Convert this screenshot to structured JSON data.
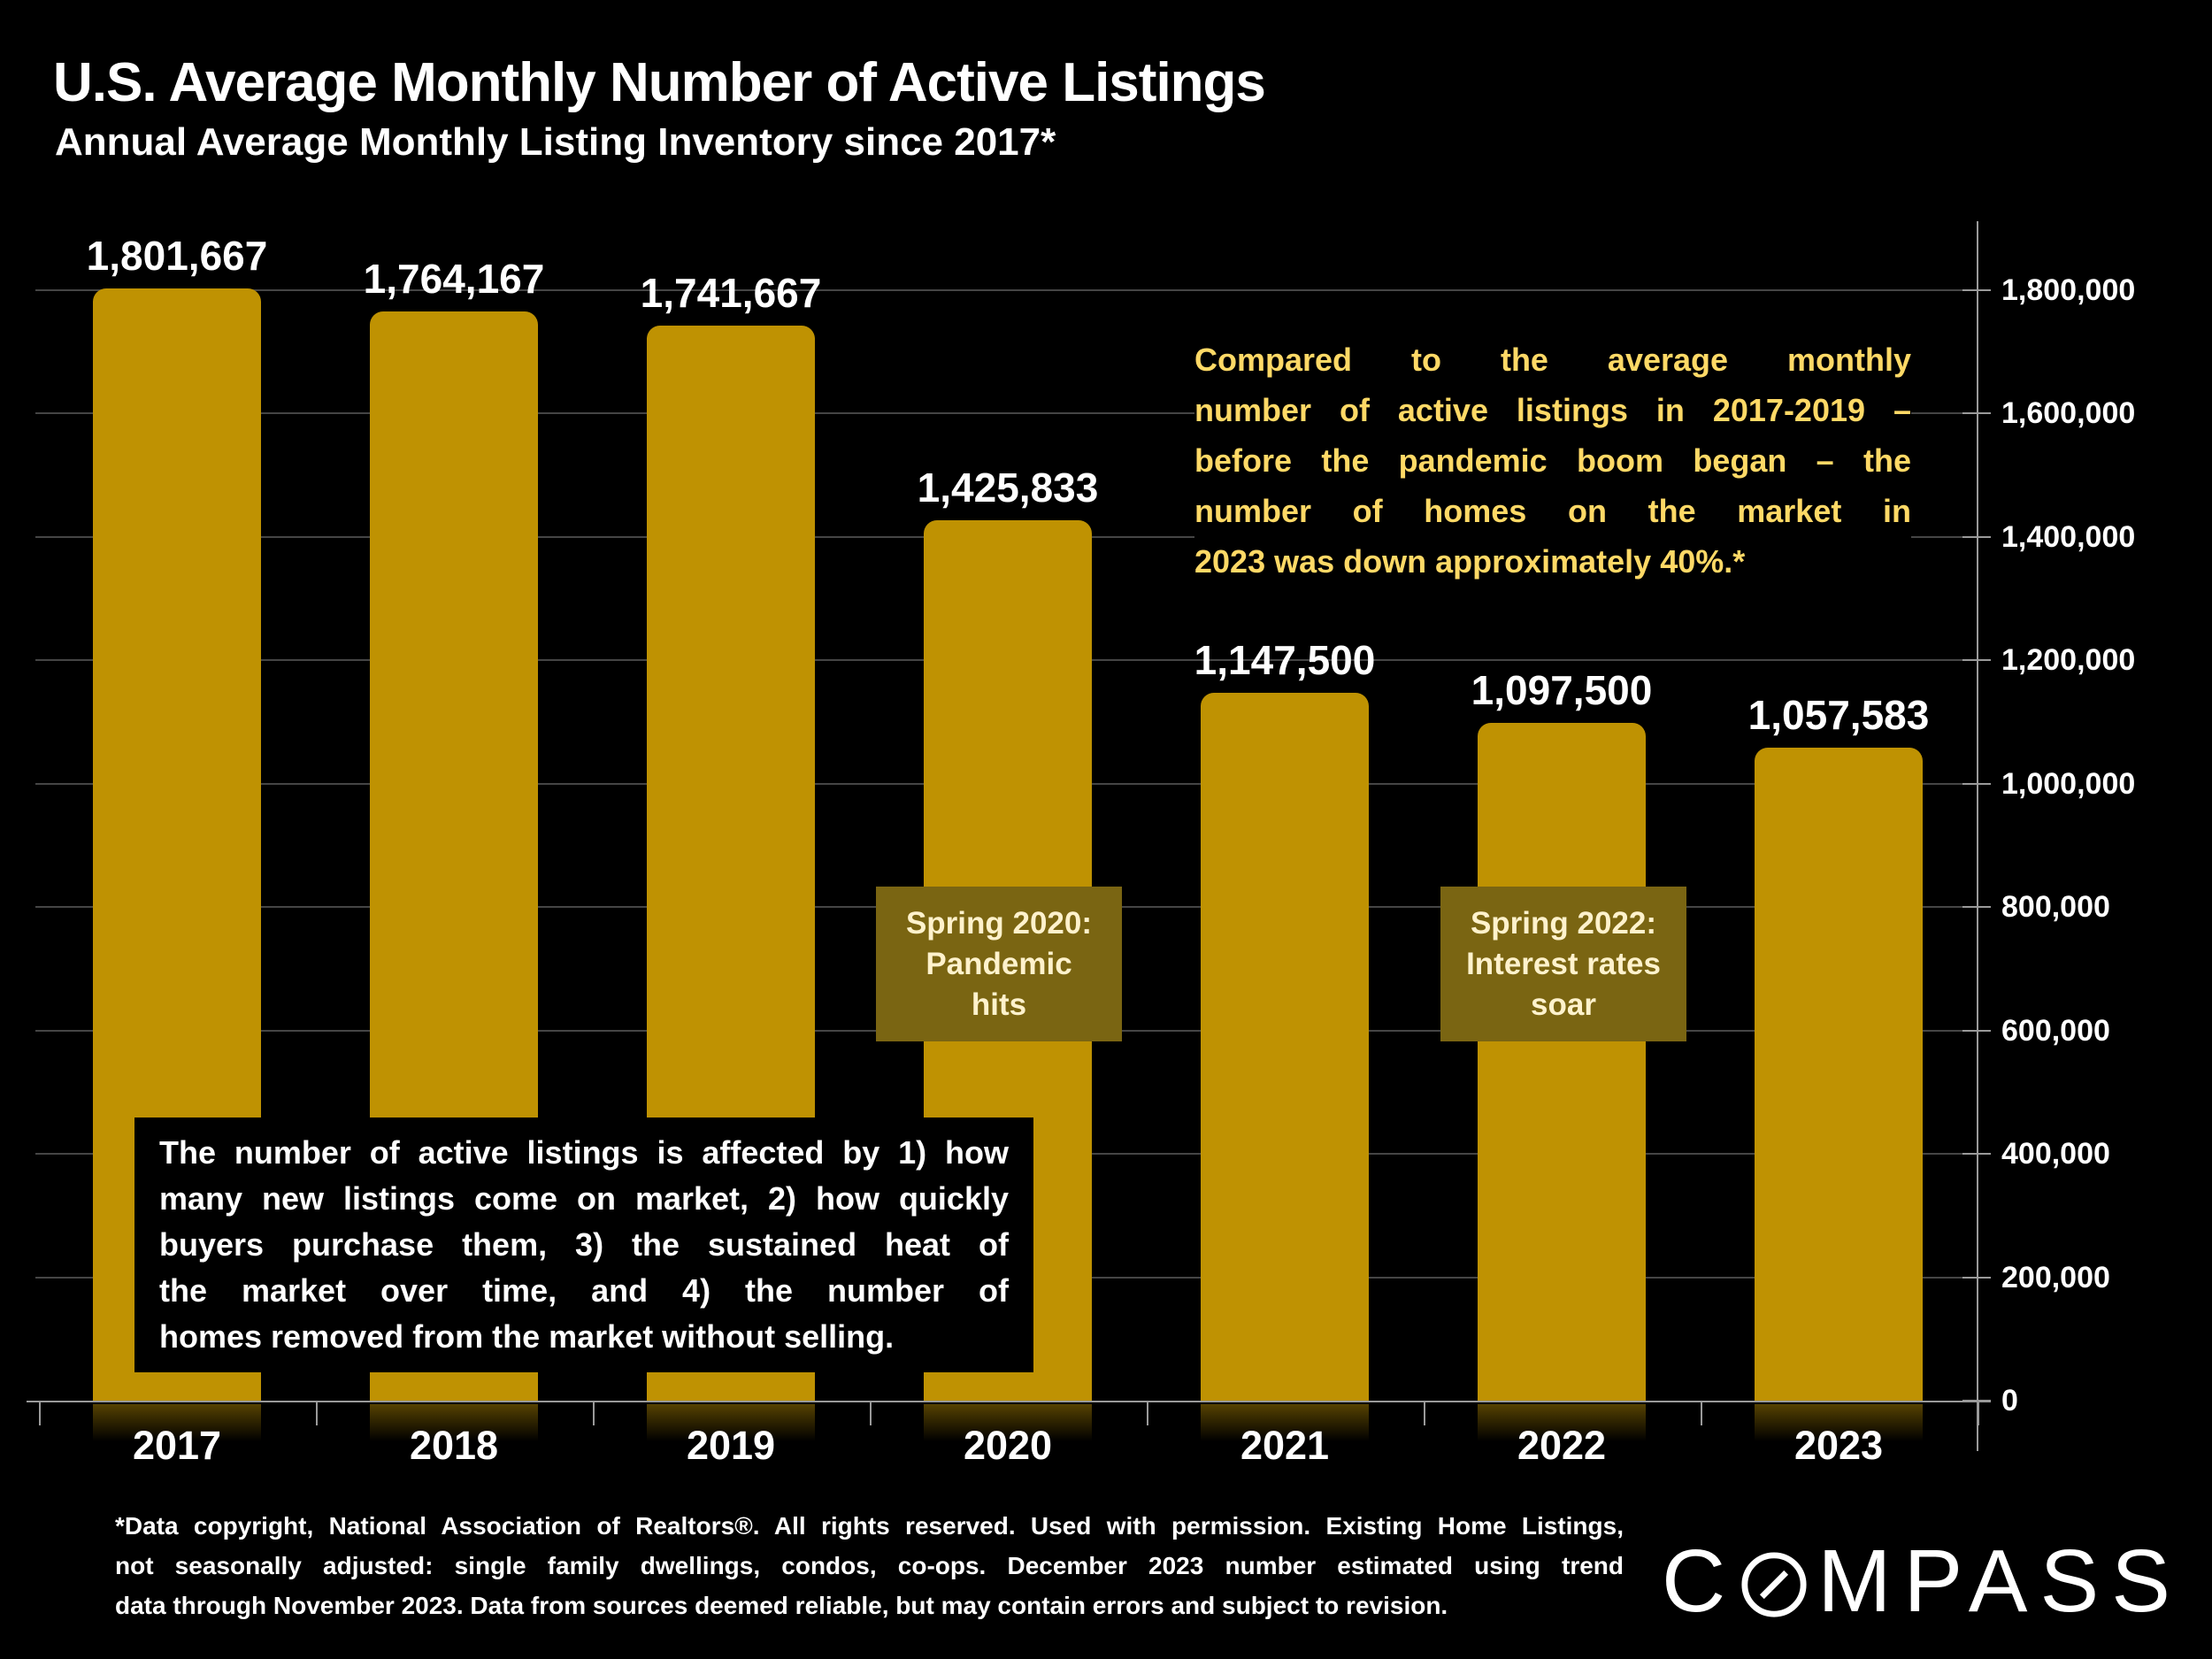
{
  "slide": {
    "title": "U.S. Average Monthly Number of Active Listings",
    "subtitle": "Annual Average Monthly Listing Inventory since 2017*",
    "logo_text": "COMPASS"
  },
  "chart_data": {
    "type": "bar",
    "title": "U.S. Average Monthly Number of Active Listings",
    "subtitle": "Annual Average Monthly Listing Inventory since 2017*",
    "categories": [
      "2017",
      "2018",
      "2019",
      "2020",
      "2021",
      "2022",
      "2023"
    ],
    "values": [
      1801667,
      1764167,
      1741667,
      1425833,
      1147500,
      1097500,
      1057583
    ],
    "value_labels": [
      "1,801,667",
      "1,764,167",
      "1,741,667",
      "1,425,833",
      "1,147,500",
      "1,097,500",
      "1,057,583"
    ],
    "ylim": [
      0,
      1800000
    ],
    "y_tick_step": 200000,
    "y_tick_labels": [
      "0",
      "200,000",
      "400,000",
      "600,000",
      "800,000",
      "1,000,000",
      "1,200,000",
      "1,400,000",
      "1,600,000",
      "1,800,000"
    ],
    "axis_side": "right",
    "grid": true,
    "legend": "none",
    "bar_color": "#BF9202",
    "grid_color": "#454545",
    "axis_color": "#9a9a9a"
  },
  "annotations": {
    "gold_note": {
      "color": "#FFD966",
      "lines": [
        "Compared to the average monthly",
        "number of active listings in 2017-2019 –",
        "before the pandemic boom began – the",
        "number of homes on the market in",
        "2023 was down approximately 40%.*"
      ]
    },
    "spring_2020": {
      "box_color": "#7A6512",
      "text_color": "#FFF2CC",
      "lines": [
        "Spring 2020:",
        "Pandemic",
        "hits"
      ]
    },
    "spring_2022": {
      "box_color": "#7A6512",
      "text_color": "#FFF2CC",
      "lines": [
        "Spring 2022:",
        "Interest rates",
        "soar"
      ]
    },
    "info_box": {
      "lines": [
        "The number of active listings is affected by 1) how",
        "many new listings come on market, 2) how quickly",
        "buyers purchase them, 3) the sustained heat of",
        "the market over time, and 4) the number of",
        "homes removed from the market without selling."
      ]
    },
    "footnote": {
      "lines": [
        "*Data copyright, National Association of Realtors®. All rights reserved. Used with permission. Existing Home Listings,",
        "not seasonally adjusted:  single family dwellings, condos, co-ops. December 2023 number estimated using trend",
        "data through November 2023. Data from sources deemed reliable, but may contain errors and subject to revision."
      ]
    }
  }
}
